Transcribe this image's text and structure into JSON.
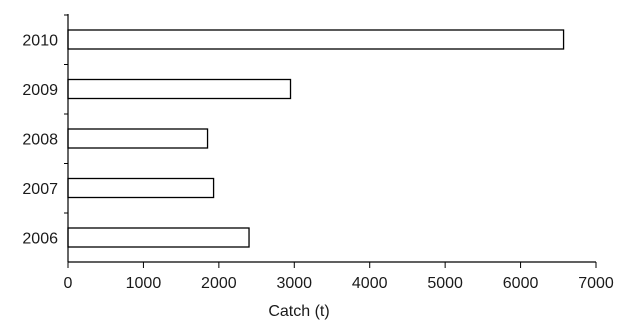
{
  "chart_data": {
    "type": "bar",
    "orientation": "horizontal",
    "title": "",
    "xlabel": "Catch (t)",
    "ylabel": "",
    "categories": [
      "2010",
      "2009",
      "2008",
      "2007",
      "2006"
    ],
    "values": [
      6570,
      2950,
      1850,
      1930,
      2400
    ],
    "xlim": [
      0,
      7000
    ],
    "xticks": [
      "0",
      "1000",
      "2000",
      "3000",
      "4000",
      "5000",
      "6000",
      "7000"
    ],
    "grid": false,
    "legend": "none",
    "bar_fill": "#ffffff",
    "bar_stroke": "#000000"
  }
}
